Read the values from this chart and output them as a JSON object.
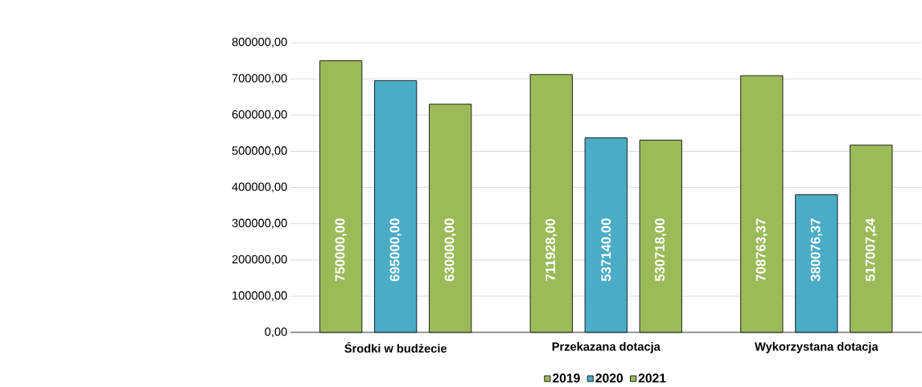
{
  "chart_data": {
    "type": "bar",
    "categories": [
      "Środki w budżecie",
      "Przekazana dotacja",
      "Wykorzystana dotacja"
    ],
    "series": [
      {
        "name": "2019",
        "color": "#9bbb59",
        "values": [
          750000,
          711928,
          708763.37
        ],
        "value_labels": [
          "750000,00",
          "711928,00",
          "708763,37"
        ]
      },
      {
        "name": "2020",
        "color": "#4bacc6",
        "values": [
          695000,
          537140,
          380076.37
        ],
        "value_labels": [
          "695000,00",
          "537140.00",
          "380076,37"
        ]
      },
      {
        "name": "2021",
        "color": "#9bbb59",
        "values": [
          630000,
          530718,
          517007.24
        ],
        "value_labels": [
          "630000,00",
          "530718,00",
          "517007,24"
        ]
      }
    ],
    "ylim": [
      0,
      800000
    ],
    "yticks": [
      {
        "value": 0,
        "label": "0,00"
      },
      {
        "value": 100000,
        "label": "100000,00"
      },
      {
        "value": 200000,
        "label": "200000,00"
      },
      {
        "value": 300000,
        "label": "300000,00"
      },
      {
        "value": 400000,
        "label": "400000,00"
      },
      {
        "value": 500000,
        "label": "500000,00"
      },
      {
        "value": 600000,
        "label": "600000,00"
      },
      {
        "value": 700000,
        "label": "700000,00"
      },
      {
        "value": 800000,
        "label": "800000,00"
      }
    ],
    "grid": "y",
    "legend": "bottom"
  }
}
